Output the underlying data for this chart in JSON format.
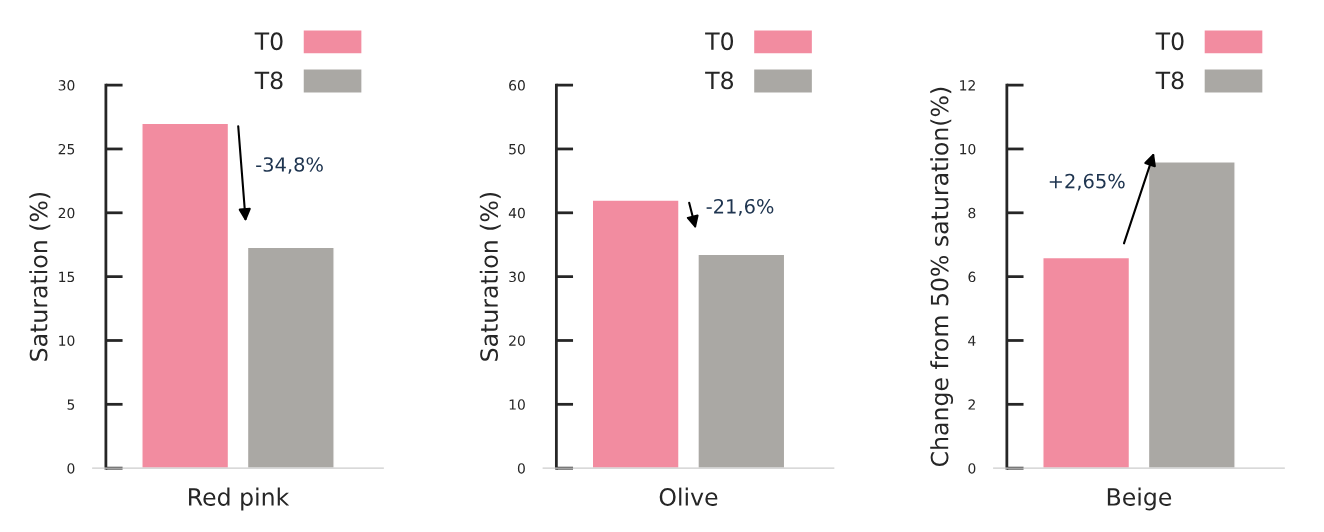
{
  "chart_data": [
    {
      "type": "bar",
      "categories": [
        "Red pink"
      ],
      "ylabel": "Saturation (%)",
      "ylim": [
        0,
        30
      ],
      "yticks": [
        0,
        5,
        10,
        15,
        20,
        25,
        30
      ],
      "legend": "top right",
      "grid": false,
      "annotations": [
        "-34,8%"
      ],
      "series": [
        {
          "name": "T0",
          "color": "#f28ca0",
          "values": [
            27
          ]
        },
        {
          "name": "T8",
          "color": "#aaa8a4",
          "values": [
            17.3
          ]
        }
      ]
    },
    {
      "type": "bar",
      "categories": [
        "Olive"
      ],
      "ylabel": "Saturation (%)",
      "ylim": [
        0,
        60
      ],
      "yticks": [
        0,
        10,
        20,
        30,
        40,
        50,
        60
      ],
      "legend": "top right",
      "grid": false,
      "annotations": [
        "-21,6%"
      ],
      "series": [
        {
          "name": "T0",
          "color": "#f28ca0",
          "values": [
            42
          ]
        },
        {
          "name": "T8",
          "color": "#aaa8a4",
          "values": [
            33.5
          ]
        }
      ]
    },
    {
      "type": "bar",
      "categories": [
        "Beige"
      ],
      "ylabel": "Change from 50% saturation(%)",
      "ylim": [
        0,
        12
      ],
      "yticks": [
        0,
        2,
        4,
        6,
        8,
        10,
        12
      ],
      "legend": "top right",
      "grid": false,
      "annotations": [
        "+2,65%"
      ],
      "series": [
        {
          "name": "T0",
          "color": "#f28ca0",
          "values": [
            6.6
          ]
        },
        {
          "name": "T8",
          "color": "#aaa8a4",
          "values": [
            9.6
          ]
        }
      ]
    }
  ]
}
